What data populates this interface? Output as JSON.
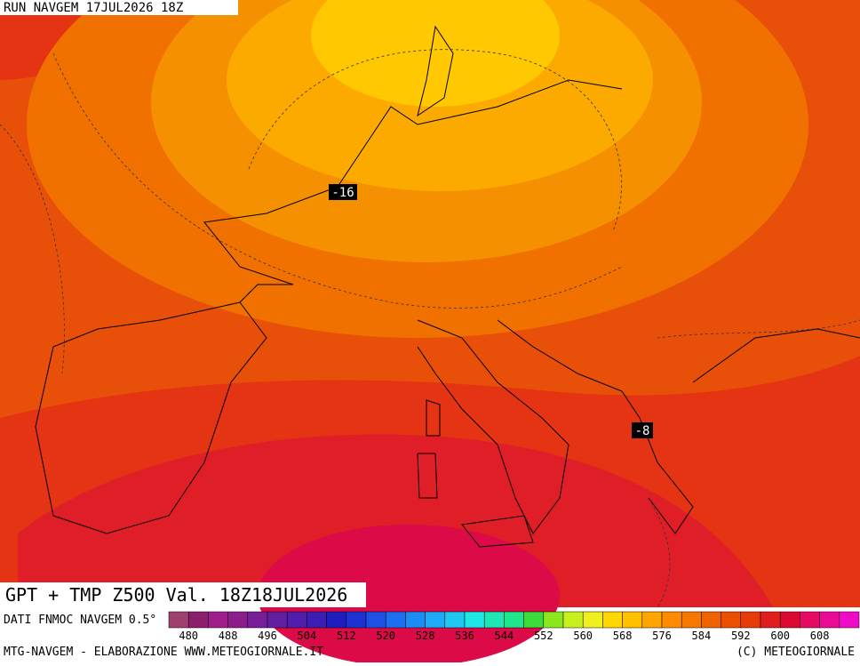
{
  "header": "RUN NAVGEM 17JUL2026 18Z",
  "map_labels": [
    "-16",
    "-8"
  ],
  "title": "GPT + TMP Z500 Val. 18Z18JUL2026",
  "source": "DATI FNMOC NAVGEM 0.5°",
  "colorbar": {
    "colors": [
      "#a0406e",
      "#8c1e6e",
      "#a01e8c",
      "#8c1e8c",
      "#781e96",
      "#641ea0",
      "#501eaa",
      "#3c1eb4",
      "#1e1ebe",
      "#1e32d2",
      "#1e50e6",
      "#1e6ef0",
      "#1e8cf5",
      "#1eaaf5",
      "#1ec8f0",
      "#1ee6e6",
      "#1ee6b4",
      "#1ee68c",
      "#3cdc3c",
      "#8ce61e",
      "#c8f01e",
      "#f0f01e",
      "#ffd700",
      "#ffc000",
      "#ffa500",
      "#ff8c00",
      "#f57800",
      "#f06400",
      "#eb5000",
      "#e63c0a",
      "#e11e1e",
      "#dc0a32",
      "#e60a64",
      "#eb0a96",
      "#f00ac8"
    ],
    "ticks": [
      480,
      488,
      496,
      504,
      512,
      520,
      528,
      536,
      544,
      552,
      560,
      568,
      576,
      584,
      592,
      600,
      608
    ]
  },
  "footer_left": "MTG-NAVGEM - ELABORAZIONE WWW.METEOGIORNALE.IT",
  "footer_right": "(C) METEOGIORNALE"
}
